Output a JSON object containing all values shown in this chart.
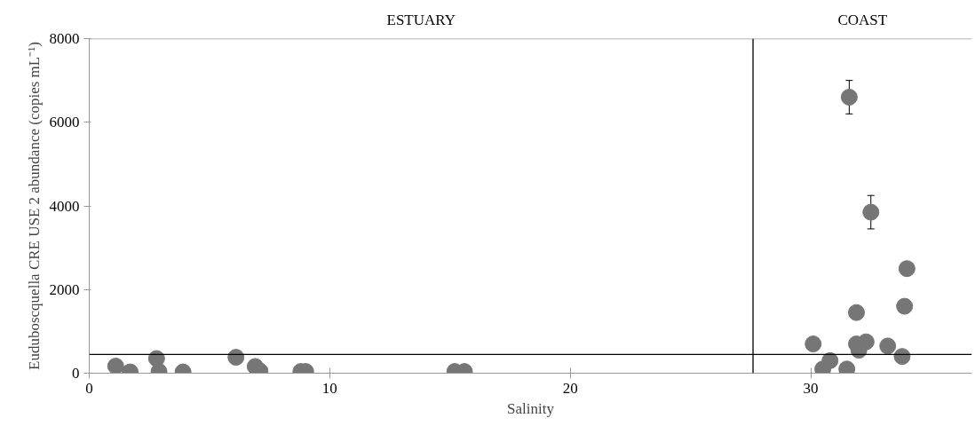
{
  "chart_data": {
    "type": "scatter",
    "xlabel": "Salinity",
    "ylabel": "Euduboscquella CRE USE 2 abundance (copies mL⁻¹)",
    "x": [
      1.1,
      1.7,
      2.8,
      2.9,
      3.9,
      6.1,
      6.9,
      7.1,
      8.8,
      9.0,
      15.2,
      15.6,
      31.6,
      32.5,
      34.0,
      33.9,
      31.9,
      30.1,
      31.9,
      32.3,
      32.0,
      33.2,
      33.8,
      30.8,
      30.5,
      31.5
    ],
    "series": [
      {
        "color": "#767676",
        "values": [
          170,
          30,
          350,
          40,
          30,
          380,
          160,
          50,
          40,
          40,
          40,
          40,
          6600,
          3850,
          2500,
          1600,
          1450,
          700,
          700,
          750,
          550,
          650,
          400,
          300,
          100,
          100
        ],
        "errors": [
          null,
          null,
          null,
          null,
          null,
          null,
          null,
          null,
          null,
          null,
          null,
          null,
          400,
          400,
          null,
          null,
          null,
          null,
          null,
          null,
          null,
          null,
          null,
          null,
          null,
          null
        ]
      }
    ],
    "xlim": [
      0,
      36.7
    ],
    "ylim": [
      0,
      8000
    ],
    "xticks": [
      0,
      10,
      20,
      30
    ],
    "yticks": [
      0,
      2000,
      4000,
      6000,
      8000
    ],
    "ref_lines": [
      {
        "axis": "x",
        "value": 27.6,
        "label": null,
        "color": "#000000"
      },
      {
        "axis": "y",
        "value": 450,
        "label": null,
        "color": "#000000"
      }
    ],
    "annotations": [
      "ESTUARY",
      "COAST"
    ],
    "marker": "circle",
    "grid": false
  }
}
